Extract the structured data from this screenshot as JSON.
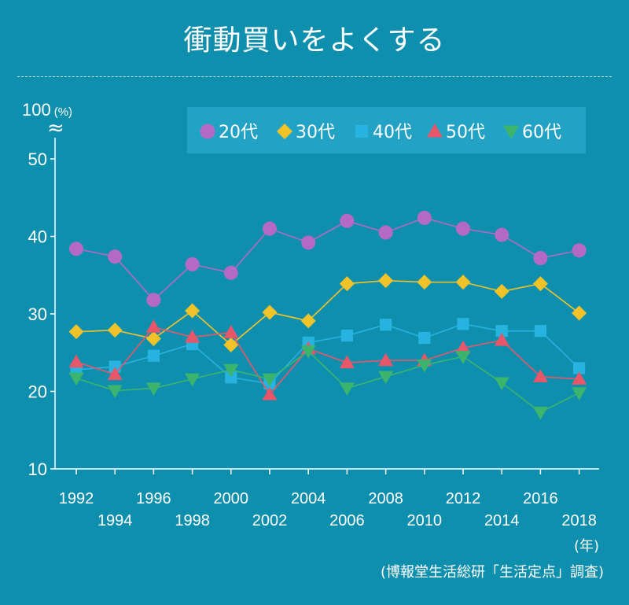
{
  "chart_data": {
    "type": "line",
    "title": "衝動買いをよくする",
    "y_axis_top_label": "100",
    "y_unit": "(%)",
    "x_unit": "(年)",
    "source": "(博報堂生活総研「生活定点」調査)",
    "ylim": [
      10,
      50
    ],
    "yticks": [
      10,
      20,
      30,
      40,
      50
    ],
    "x": [
      1992,
      1994,
      1996,
      1998,
      2000,
      2002,
      2004,
      2006,
      2008,
      2010,
      2012,
      2014,
      2016,
      2018
    ],
    "xtick_labels_upper": [
      "1992",
      "1996",
      "2000",
      "2004",
      "2008",
      "2012",
      "2016"
    ],
    "xtick_labels_lower": [
      "1994",
      "1998",
      "2002",
      "2006",
      "2010",
      "2014",
      "2018"
    ],
    "grid": false,
    "legend_position": "top",
    "series": [
      {
        "name": "20代",
        "marker": "circle",
        "color": "#b469c4",
        "values": [
          38.4,
          37.4,
          31.8,
          36.4,
          35.3,
          41.0,
          39.2,
          42.0,
          40.5,
          42.4,
          41.0,
          40.2,
          37.2,
          38.2
        ]
      },
      {
        "name": "30代",
        "marker": "diamond",
        "color": "#f2c229",
        "values": [
          27.7,
          27.9,
          26.8,
          30.4,
          26.0,
          30.2,
          29.1,
          33.9,
          34.3,
          34.1,
          34.1,
          32.9,
          33.9,
          30.1
        ]
      },
      {
        "name": "40代",
        "marker": "square",
        "color": "#27b3e0",
        "values": [
          22.8,
          23.2,
          24.6,
          26.1,
          21.8,
          21.0,
          26.3,
          27.2,
          28.6,
          26.9,
          28.7,
          27.8,
          27.8,
          23.0
        ]
      },
      {
        "name": "50代",
        "marker": "triangle-up",
        "color": "#e8566a",
        "values": [
          23.8,
          22.2,
          28.3,
          27.0,
          27.6,
          19.6,
          25.5,
          23.7,
          24.0,
          24.0,
          25.6,
          26.6,
          21.9,
          21.6
        ]
      },
      {
        "name": "60代",
        "marker": "triangle-down",
        "color": "#3bb56e",
        "values": [
          21.7,
          20.1,
          20.4,
          21.6,
          22.8,
          21.6,
          25.2,
          20.4,
          21.9,
          23.4,
          24.5,
          21.1,
          17.3,
          19.8
        ]
      }
    ]
  }
}
